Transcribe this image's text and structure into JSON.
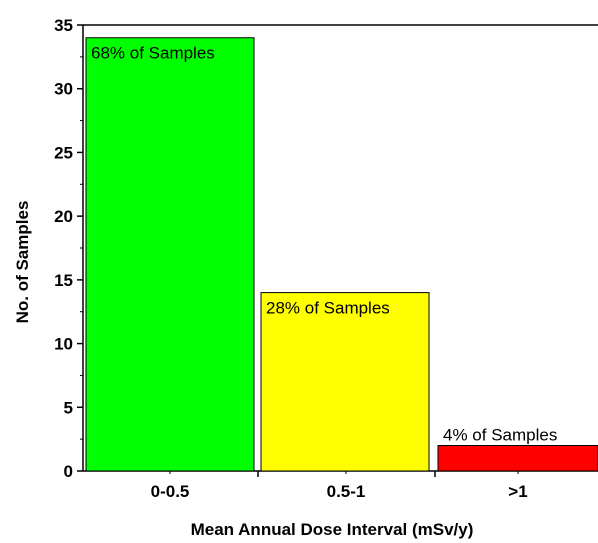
{
  "chart_data": {
    "type": "bar",
    "title": "",
    "xlabel": "Mean Annual Dose Interval (mSv/y)",
    "ylabel": "No. of Samples",
    "categories": [
      "0-0.5",
      "0.5-1",
      ">1"
    ],
    "values": [
      34,
      14,
      2
    ],
    "annotations": [
      "68% of Samples",
      "28% of Samples",
      "4% of Samples"
    ],
    "colors": [
      "#00ff00",
      "#ffff00",
      "#ff0000"
    ],
    "ylim": [
      0,
      35
    ],
    "yticks": [
      "0",
      "5",
      "10",
      "15",
      "20",
      "25",
      "30",
      "35"
    ],
    "grid": false,
    "legend": "none"
  }
}
